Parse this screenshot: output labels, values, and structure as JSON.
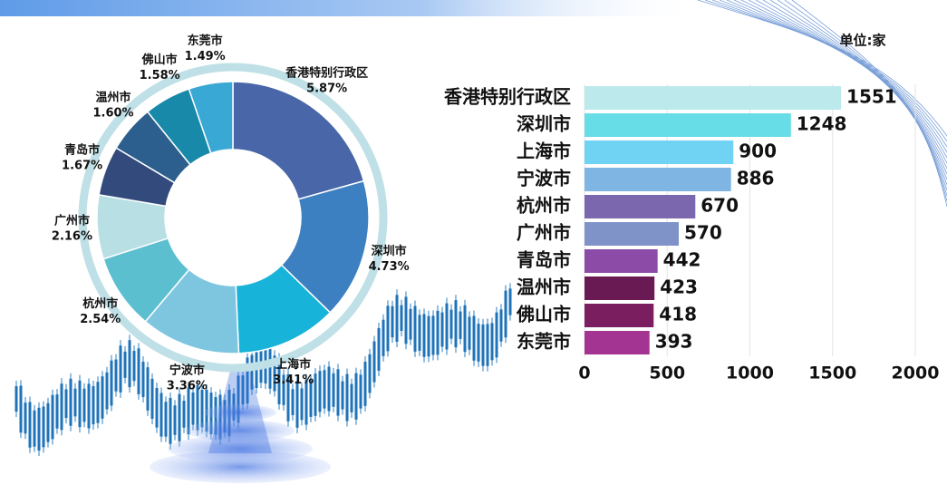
{
  "chart_data": [
    {
      "type": "donut",
      "categories": [
        "香港特别行政区",
        "深圳市",
        "上海市",
        "宁波市",
        "杭州市",
        "广州市",
        "青岛市",
        "温州市",
        "佛山市",
        "东莞市"
      ],
      "values": [
        5.87,
        4.73,
        3.41,
        3.36,
        2.54,
        2.16,
        1.67,
        1.6,
        1.58,
        1.49
      ],
      "value_labels": [
        "5.87%",
        "4.73%",
        "3.41%",
        "3.36%",
        "2.54%",
        "2.16%",
        "1.67%",
        "1.60%",
        "1.58%",
        "1.49%"
      ],
      "colors": [
        "#4866a8",
        "#3d80c2",
        "#17b3d8",
        "#7ec6e0",
        "#5cbfd0",
        "#b7dfe4",
        "#334a7c",
        "#2c5f8e",
        "#1889a8",
        "#3aa8d5"
      ]
    },
    {
      "type": "hbar",
      "unit": "单位:家",
      "categories": [
        "香港特别行政区",
        "深圳市",
        "上海市",
        "宁波市",
        "杭州市",
        "广州市",
        "青岛市",
        "温州市",
        "佛山市",
        "东莞市"
      ],
      "values": [
        1551,
        1248,
        900,
        886,
        670,
        570,
        442,
        423,
        418,
        393
      ],
      "colors": [
        "#bce9eb",
        "#66dde7",
        "#70d3f3",
        "#7fb5e3",
        "#7a67ae",
        "#7f93c8",
        "#8b4ba7",
        "#6a1a52",
        "#7a1e5f",
        "#a43491"
      ],
      "xlim": [
        0,
        2000
      ],
      "xticks": [
        0,
        500,
        1000,
        1500,
        2000
      ],
      "grid": true
    }
  ]
}
